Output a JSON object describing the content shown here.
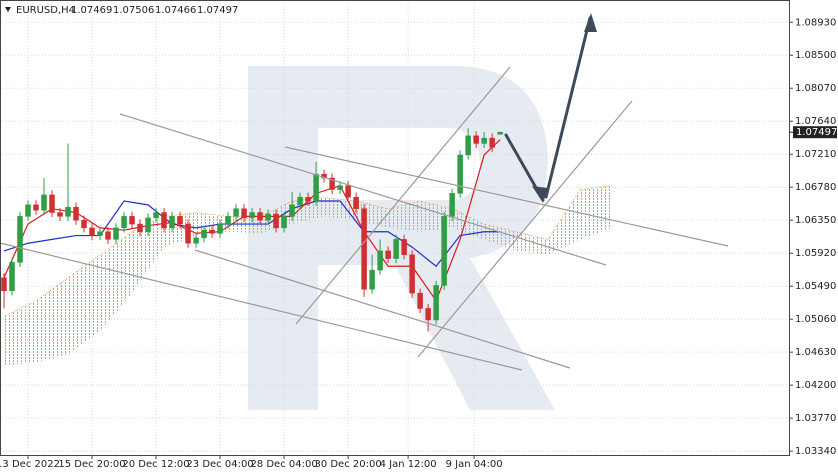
{
  "chart_data": {
    "type": "candlestick",
    "title": "EURUSD,H4",
    "ohlc": [
      1.07469,
      1.07506,
      1.07466,
      1.07497
    ],
    "last_price": 1.07497,
    "up_color": "#2f9e44",
    "down_color": "#d03030",
    "xlim": [
      -0.5,
      98.1
    ],
    "ylim": [
      1.0329,
      1.0922
    ],
    "grid": true,
    "xticks": [
      {
        "value": 3,
        "label": "13 Dec 2022"
      },
      {
        "value": 11,
        "label": "15 Dec 20:00"
      },
      {
        "value": 19,
        "label": "20 Dec 12:00"
      },
      {
        "value": 27,
        "label": "23 Dec 04:00"
      },
      {
        "value": 35,
        "label": "28 Dec 04:00"
      },
      {
        "value": 43,
        "label": "30 Dec 20:00"
      },
      {
        "value": 50.5,
        "label": "4 Jan 12:00"
      },
      {
        "value": 58.75,
        "label": "9 Jan 04:00"
      }
    ],
    "yticks": [
      {
        "value": 1.0893,
        "label": "1.08930"
      },
      {
        "value": 1.085,
        "label": "1.08500"
      },
      {
        "value": 1.0807,
        "label": "1.08070"
      },
      {
        "value": 1.0764,
        "label": "1.07640"
      },
      {
        "value": 1.0721,
        "label": "1.07210"
      },
      {
        "value": 1.0678,
        "label": "1.06780"
      },
      {
        "value": 1.0635,
        "label": "1.06350"
      },
      {
        "value": 1.0592,
        "label": "1.05920"
      },
      {
        "value": 1.0549,
        "label": "1.05490"
      },
      {
        "value": 1.0506,
        "label": "1.05060"
      },
      {
        "value": 1.0463,
        "label": "1.04630"
      },
      {
        "value": 1.042,
        "label": "1.04200"
      },
      {
        "value": 1.0377,
        "label": "1.03770"
      },
      {
        "value": 1.0334,
        "label": "1.03340"
      }
    ],
    "opens": [
      1.056,
      1.0543,
      1.058,
      1.064,
      1.0655,
      1.0648,
      1.0668,
      1.0645,
      1.064,
      1.0652,
      1.0635,
      1.0625,
      1.0615,
      1.062,
      1.061,
      1.0625,
      1.064,
      1.063,
      1.062,
      1.0638,
      1.0645,
      1.0625,
      1.064,
      1.063,
      1.0605,
      1.0612,
      1.0622,
      1.0618,
      1.063,
      1.064,
      1.065,
      1.0638,
      1.0645,
      1.0635,
      1.0643,
      1.0625,
      1.064,
      1.0655,
      1.0665,
      1.066,
      1.0695,
      1.069,
      1.0675,
      1.068,
      1.0665,
      1.065,
      1.0545,
      1.057,
      1.0595,
      1.0585,
      1.061,
      1.059,
      1.054,
      1.052,
      1.0505,
      1.055,
      1.064,
      1.067,
      1.072,
      1.0745,
      1.0735,
      1.0742,
      1.07469
    ],
    "highs": [
      1.0566,
      1.0586,
      1.0646,
      1.0661,
      1.0661,
      1.069,
      1.0674,
      1.0651,
      1.0735,
      1.0658,
      1.0641,
      1.0631,
      1.0626,
      1.0626,
      1.0631,
      1.0646,
      1.0646,
      1.0636,
      1.0644,
      1.0651,
      1.0651,
      1.0646,
      1.0646,
      1.0636,
      1.0618,
      1.0628,
      1.0628,
      1.0636,
      1.0646,
      1.0656,
      1.0656,
      1.0651,
      1.0651,
      1.0649,
      1.0649,
      1.0646,
      1.0672,
      1.0671,
      1.0671,
      1.0711,
      1.0701,
      1.0696,
      1.0686,
      1.0686,
      1.0671,
      1.0656,
      1.059,
      1.061,
      1.0601,
      1.0616,
      1.0616,
      1.0596,
      1.0546,
      1.0526,
      1.0556,
      1.0646,
      1.0676,
      1.0726,
      1.0755,
      1.0751,
      1.075,
      1.0748,
      1.07506
    ],
    "lows": [
      1.052,
      1.0537,
      1.0574,
      1.0634,
      1.0642,
      1.0642,
      1.0639,
      1.0634,
      1.0634,
      1.0629,
      1.0619,
      1.0609,
      1.0609,
      1.0604,
      1.0604,
      1.0619,
      1.0624,
      1.0614,
      1.0614,
      1.0632,
      1.0619,
      1.0619,
      1.0624,
      1.0599,
      1.0599,
      1.0606,
      1.0612,
      1.0612,
      1.0624,
      1.0634,
      1.0632,
      1.0632,
      1.0629,
      1.0629,
      1.0619,
      1.0619,
      1.0634,
      1.0649,
      1.0654,
      1.0654,
      1.0684,
      1.0669,
      1.0669,
      1.0659,
      1.0644,
      1.0535,
      1.0539,
      1.0564,
      1.0579,
      1.0579,
      1.0584,
      1.0534,
      1.0514,
      1.049,
      1.0499,
      1.0544,
      1.0634,
      1.0664,
      1.0714,
      1.0729,
      1.0729,
      1.0724,
      1.07466
    ],
    "closes": [
      1.0543,
      1.058,
      1.064,
      1.0655,
      1.0648,
      1.0668,
      1.0645,
      1.064,
      1.0652,
      1.0635,
      1.0625,
      1.0615,
      1.062,
      1.061,
      1.0625,
      1.064,
      1.063,
      1.062,
      1.0638,
      1.0645,
      1.0625,
      1.064,
      1.063,
      1.0605,
      1.0612,
      1.0622,
      1.0618,
      1.063,
      1.064,
      1.065,
      1.0638,
      1.0645,
      1.0635,
      1.0643,
      1.0625,
      1.064,
      1.0655,
      1.0665,
      1.066,
      1.0695,
      1.069,
      1.0675,
      1.068,
      1.0665,
      1.065,
      1.0545,
      1.057,
      1.0595,
      1.0585,
      1.061,
      1.059,
      1.054,
      1.052,
      1.0505,
      1.055,
      1.064,
      1.067,
      1.072,
      1.0745,
      1.0735,
      1.0742,
      1.073,
      1.07497
    ],
    "series": [
      {
        "color": "#1f2fc8",
        "x": [
          0,
          3,
          6,
          9,
          12,
          15,
          18,
          21,
          24,
          27,
          30,
          33,
          36,
          39,
          42,
          45,
          48,
          51,
          54,
          57,
          60,
          62
        ],
        "values": [
          1.0595,
          1.0605,
          1.061,
          1.0615,
          1.0615,
          1.066,
          1.0655,
          1.063,
          1.0625,
          1.063,
          1.063,
          1.063,
          1.065,
          1.066,
          1.066,
          1.062,
          1.062,
          1.06,
          1.0575,
          1.0615,
          1.062,
          1.062
        ]
      },
      {
        "color": "#e01818",
        "x": [
          0,
          3,
          6,
          9,
          12,
          15,
          18,
          21,
          24,
          27,
          30,
          33,
          36,
          39,
          42,
          45,
          48,
          51,
          54,
          57,
          60,
          62
        ],
        "values": [
          1.056,
          1.063,
          1.065,
          1.0645,
          1.0625,
          1.0622,
          1.0628,
          1.0632,
          1.0618,
          1.062,
          1.064,
          1.064,
          1.064,
          1.067,
          1.068,
          1.062,
          1.0575,
          1.0575,
          1.053,
          1.061,
          1.072,
          1.074
        ]
      }
    ],
    "cloud": {
      "color": "#f09a50",
      "x": [
        0,
        4,
        8,
        12,
        16,
        20,
        24,
        28,
        32,
        36,
        40,
        44,
        48,
        52,
        56,
        60,
        64,
        68,
        72,
        76
      ],
      "upper": [
        1.051,
        1.053,
        1.056,
        1.059,
        1.062,
        1.064,
        1.0645,
        1.064,
        1.064,
        1.066,
        1.0665,
        1.066,
        1.065,
        1.066,
        1.065,
        1.063,
        1.062,
        1.061,
        1.0675,
        1.068
      ],
      "lower": [
        1.0445,
        1.045,
        1.046,
        1.049,
        1.054,
        1.06,
        1.0615,
        1.062,
        1.0618,
        1.063,
        1.064,
        1.0635,
        1.0625,
        1.062,
        1.0625,
        1.061,
        1.0595,
        1.059,
        1.061,
        1.0625
      ]
    }
  }
}
